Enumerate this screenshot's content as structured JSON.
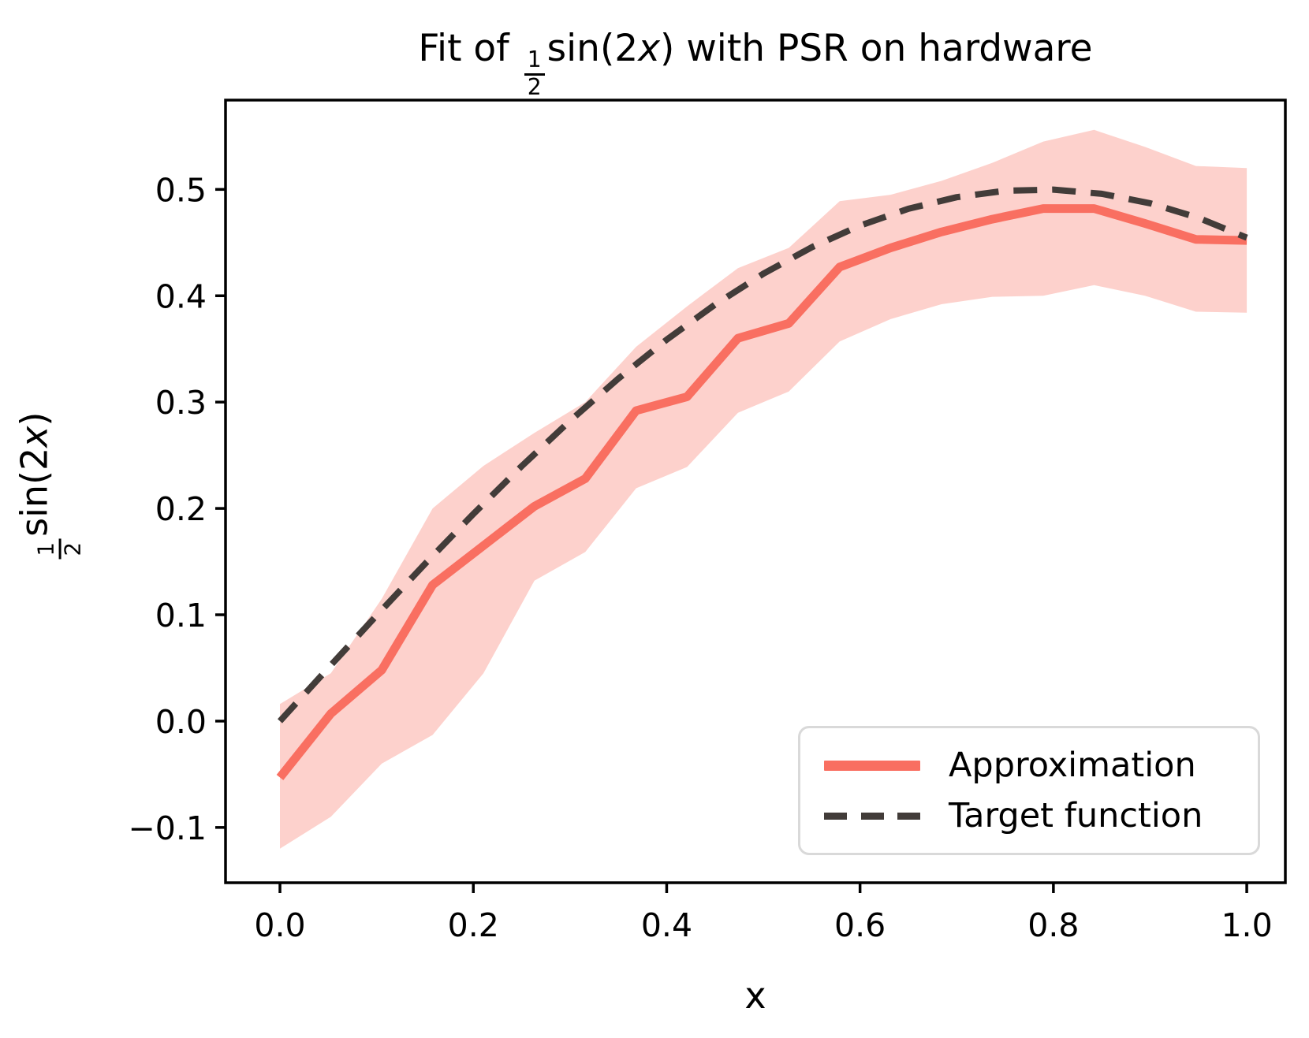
{
  "title": {
    "pre": "Fit of ",
    "frac_num": "1",
    "frac_den": "2",
    "mid": "sin(2",
    "var": "x",
    "close": ")",
    "post": " with PSR on hardware"
  },
  "axes": {
    "xlabel": "x",
    "ylabel": {
      "frac_num": "1",
      "frac_den": "2",
      "mid": "sin(2",
      "var": "x",
      "close": ")"
    },
    "x_ticks": [
      {
        "label": "0.0",
        "value": 0.0
      },
      {
        "label": "0.2",
        "value": 0.2
      },
      {
        "label": "0.4",
        "value": 0.4
      },
      {
        "label": "0.6",
        "value": 0.6
      },
      {
        "label": "0.8",
        "value": 0.8
      },
      {
        "label": "1.0",
        "value": 1.0
      }
    ],
    "y_ticks": [
      {
        "label": "0.5",
        "value": 0.5
      },
      {
        "label": "0.4",
        "value": 0.4
      },
      {
        "label": "0.3",
        "value": 0.3
      },
      {
        "label": "0.2",
        "value": 0.2
      },
      {
        "label": "0.1",
        "value": 0.1
      },
      {
        "label": "0.0",
        "value": 0.0
      },
      {
        "label": "−0.1",
        "value": -0.1
      }
    ]
  },
  "legend": {
    "position": "lower right",
    "items": [
      {
        "label": "Approximation",
        "style": "solid"
      },
      {
        "label": "Target function",
        "style": "dashed"
      }
    ]
  },
  "colors": {
    "approximation": "#f96f61",
    "band_fill": "#f96f61",
    "band_opacity": 0.32,
    "target": "#423c39",
    "spine": "#000000",
    "legend_border": "#d9d9d9",
    "background": "#ffffff",
    "text": "#000000"
  },
  "chart_data": {
    "type": "line",
    "title": "Fit of (1/2)sin(2x) with PSR on hardware",
    "xlabel": "x",
    "ylabel": "(1/2)sin(2x)",
    "xlim": [
      -0.0563,
      1.0399
    ],
    "ylim": [
      -0.152,
      0.584
    ],
    "grid": false,
    "legend_position": "lower right",
    "x": [
      0.0,
      0.0526,
      0.1053,
      0.1579,
      0.2105,
      0.2632,
      0.3158,
      0.3684,
      0.4211,
      0.4737,
      0.5263,
      0.5789,
      0.6316,
      0.6842,
      0.7368,
      0.7895,
      0.8421,
      0.8947,
      0.9474,
      1.0
    ],
    "series": [
      {
        "name": "Approximation",
        "style": "solid",
        "values": [
          -0.053,
          0.007,
          0.048,
          0.128,
          0.165,
          0.202,
          0.228,
          0.292,
          0.305,
          0.36,
          0.374,
          0.427,
          0.445,
          0.46,
          0.472,
          0.482,
          0.482,
          0.468,
          0.453,
          0.452
        ]
      },
      {
        "name": "Approximation uncertainty band",
        "style": "band",
        "upper": [
          0.016,
          0.045,
          0.115,
          0.2,
          0.24,
          0.271,
          0.3,
          0.352,
          0.39,
          0.426,
          0.445,
          0.489,
          0.495,
          0.508,
          0.525,
          0.545,
          0.556,
          0.54,
          0.522,
          0.52
        ],
        "lower": [
          -0.12,
          -0.09,
          -0.04,
          -0.013,
          0.045,
          0.132,
          0.159,
          0.219,
          0.239,
          0.29,
          0.31,
          0.357,
          0.378,
          0.392,
          0.399,
          0.4,
          0.41,
          0.4,
          0.385,
          0.384
        ]
      },
      {
        "name": "Target function",
        "style": "dashed",
        "x": [
          0.0,
          0.05,
          0.1,
          0.15,
          0.2,
          0.25,
          0.3,
          0.35,
          0.4,
          0.45,
          0.5,
          0.55,
          0.6,
          0.65,
          0.7,
          0.75,
          0.8,
          0.85,
          0.9,
          0.95,
          1.0
        ],
        "values": [
          0.0,
          0.0499,
          0.0993,
          0.1478,
          0.1947,
          0.2397,
          0.2823,
          0.3221,
          0.3587,
          0.3917,
          0.4207,
          0.4456,
          0.466,
          0.4818,
          0.4927,
          0.4988,
          0.4998,
          0.4959,
          0.487,
          0.4733,
          0.4546
        ]
      }
    ]
  }
}
